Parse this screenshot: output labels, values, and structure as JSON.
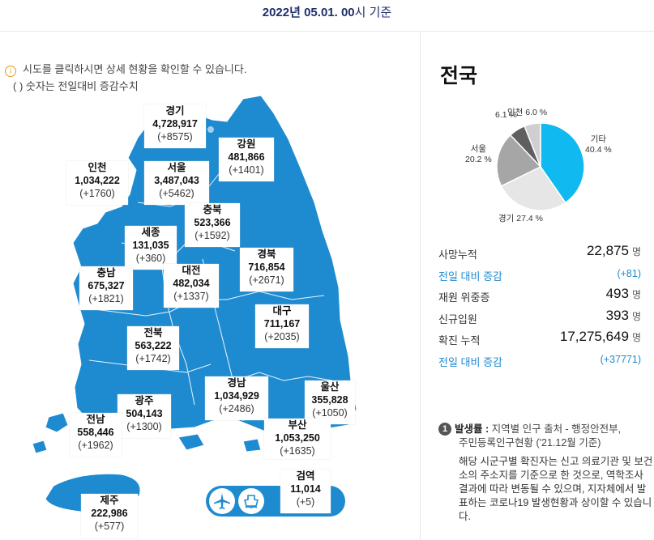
{
  "header": {
    "date_bold": "2022년 05.01. 00",
    "date_rest": "시 기준"
  },
  "notice": {
    "line1": "시도를 클릭하시면 상세 현황을 확인할 수 있습니다.",
    "line2": "( ) 숫자는 전일대비 증감수치"
  },
  "regions": [
    {
      "name": "경기",
      "count": "4,728,917",
      "inc": "(+8575)"
    },
    {
      "name": "강원",
      "count": "481,866",
      "inc": "(+1401)"
    },
    {
      "name": "인천",
      "count": "1,034,222",
      "inc": "(+1760)"
    },
    {
      "name": "서울",
      "count": "3,487,043",
      "inc": "(+5462)"
    },
    {
      "name": "충북",
      "count": "523,366",
      "inc": "(+1592)"
    },
    {
      "name": "세종",
      "count": "131,035",
      "inc": "(+360)"
    },
    {
      "name": "경북",
      "count": "716,854",
      "inc": "(+2671)"
    },
    {
      "name": "충남",
      "count": "675,327",
      "inc": "(+1821)"
    },
    {
      "name": "대전",
      "count": "482,034",
      "inc": "(+1337)"
    },
    {
      "name": "대구",
      "count": "711,167",
      "inc": "(+2035)"
    },
    {
      "name": "전북",
      "count": "563,222",
      "inc": "(+1742)"
    },
    {
      "name": "경남",
      "count": "1,034,929",
      "inc": "(+2486)"
    },
    {
      "name": "울산",
      "count": "355,828",
      "inc": "(+1050)"
    },
    {
      "name": "광주",
      "count": "504,143",
      "inc": "(+1300)"
    },
    {
      "name": "전남",
      "count": "558,446",
      "inc": "(+1962)"
    },
    {
      "name": "부산",
      "count": "1,053,250",
      "inc": "(+1635)"
    },
    {
      "name": "검역",
      "count": "11,014",
      "inc": "(+5)"
    },
    {
      "name": "제주",
      "count": "222,986",
      "inc": "(+577)"
    }
  ],
  "quarantine_icons": [
    "airplane-icon",
    "ship-icon"
  ],
  "national": {
    "title": "전국",
    "pie": [
      {
        "label": "기타",
        "pct": "40.4 %",
        "value": 40.4,
        "color": "#10b9f0"
      },
      {
        "label": "경기",
        "pct": "27.4 %",
        "value": 27.4,
        "color": "#e6e6e6"
      },
      {
        "label": "서울",
        "pct": "20.2 %",
        "value": 20.2,
        "color": "#a6a6a6"
      },
      {
        "label": "",
        "pct": "6.1 %",
        "value": 6.1,
        "color": "#5f5f5f"
      },
      {
        "label": "인천",
        "pct": "6.0 %",
        "value": 6.0,
        "color": "#cfcfcf"
      }
    ],
    "stats": [
      {
        "key": "사망누적",
        "value": "22,875",
        "unit": "명",
        "blue": false
      },
      {
        "key": "전일 대비 증감",
        "value": "(+81)",
        "unit": "",
        "blue": true
      },
      {
        "key": "재원 위중증",
        "value": "493",
        "unit": "명",
        "blue": false
      },
      {
        "key": "신규입원",
        "value": "393",
        "unit": "명",
        "blue": false
      },
      {
        "key": "확진 누적",
        "value": "17,275,649",
        "unit": "명",
        "blue": false
      },
      {
        "key": "전일 대비 증감",
        "value": "(+37771)",
        "unit": "",
        "blue": true
      }
    ]
  },
  "note": {
    "number": "1",
    "title": "발생률 :",
    "line1": "지역별 인구 출처 - 행정안전부,",
    "line2": "주민등록인구현황 ('21.12월 기준)",
    "para": "해당 시군구별 확진자는 신고 의료기관 및 보건소의 주소지를 기준으로 한 것으로, 역학조사 결과에 따라 변동될 수 있으며, 지자체에서 발표하는 코로나19 발생현황과 상이할 수 있습니다."
  }
}
